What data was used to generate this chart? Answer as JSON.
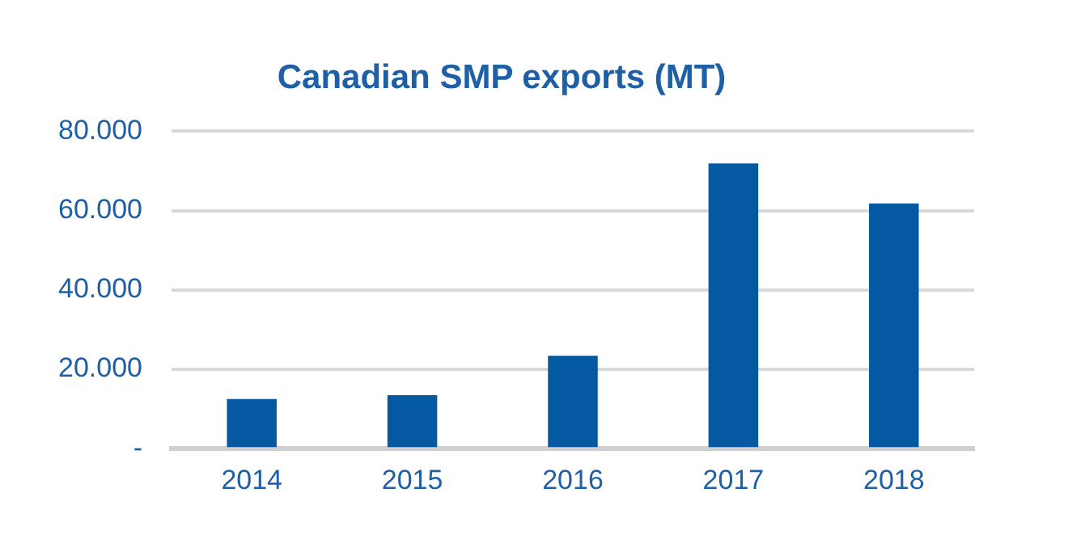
{
  "chart_data": {
    "type": "bar",
    "title": "Canadian SMP exports (MT)",
    "categories": [
      "2014",
      "2015",
      "2016",
      "2017",
      "2018"
    ],
    "values": [
      12500,
      13500,
      23400,
      71900,
      61800
    ],
    "color": "#0459a2",
    "ylim": [
      0,
      80000
    ],
    "yticks": [
      {
        "value": 0,
        "label": "-"
      },
      {
        "value": 20000,
        "label": "20.000"
      },
      {
        "value": 40000,
        "label": "40.000"
      },
      {
        "value": 60000,
        "label": "60.000"
      },
      {
        "value": 80000,
        "label": "80.000"
      }
    ],
    "grid": "y"
  }
}
